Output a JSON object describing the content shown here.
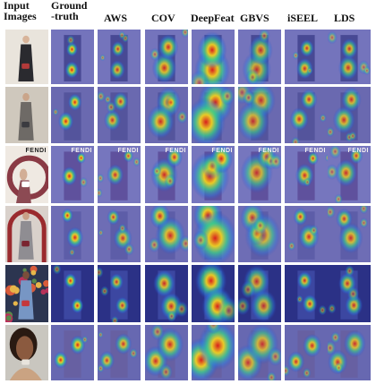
{
  "figure": {
    "columns": [
      {
        "key": "input",
        "lines": [
          "Input",
          "Images"
        ]
      },
      {
        "key": "gt",
        "lines": [
          "Ground",
          "-truth"
        ]
      },
      {
        "key": "aws",
        "lines": [
          "AWS"
        ]
      },
      {
        "key": "cov",
        "lines": [
          "COV"
        ]
      },
      {
        "key": "deepfeat",
        "lines": [
          "DeepFeat"
        ]
      },
      {
        "key": "gbvs",
        "lines": [
          "GBVS"
        ]
      },
      {
        "key": "iseel",
        "lines": [
          "iSEEL"
        ]
      },
      {
        "key": "lds",
        "lines": [
          "LDS"
        ]
      }
    ],
    "brand_text": "FENDI",
    "rows": [
      {
        "scene": "studio-portrait"
      },
      {
        "scene": "seated-on-couch"
      },
      {
        "scene": "fendi-poster"
      },
      {
        "scene": "arch-backdrop"
      },
      {
        "scene": "floral-wall"
      },
      {
        "scene": "outdoor-closeup"
      }
    ]
  }
}
